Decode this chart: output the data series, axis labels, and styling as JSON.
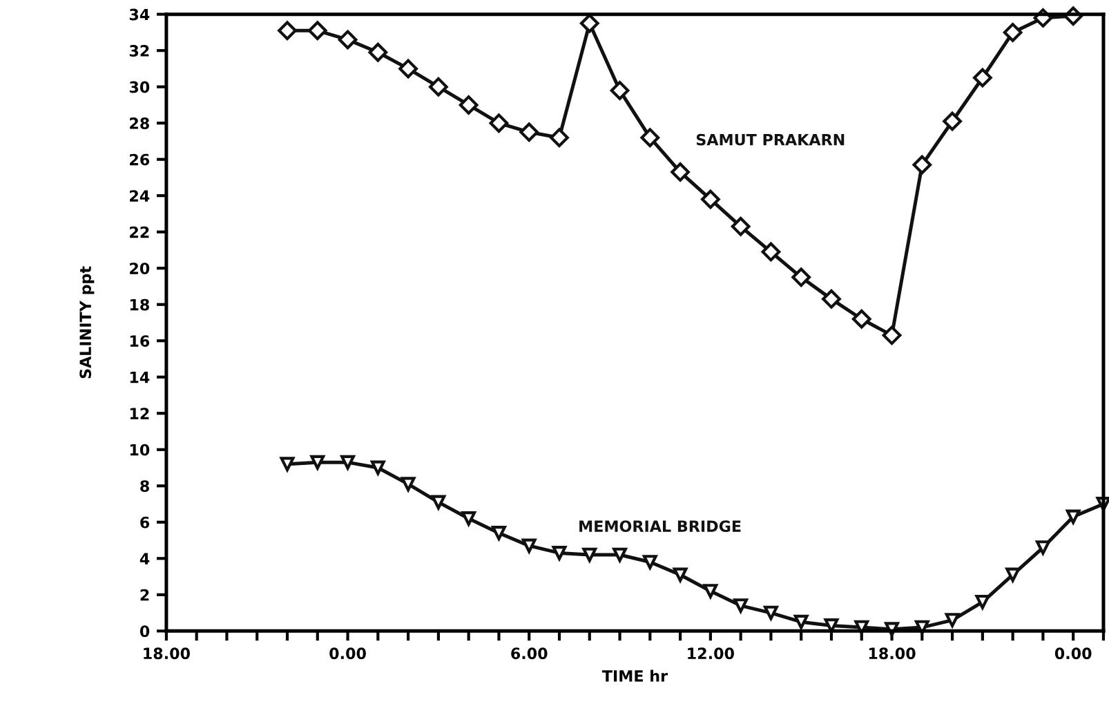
{
  "chart_data": {
    "type": "line",
    "xlabel": "TIME hr",
    "ylabel": "SALINITY ppt",
    "ylim": [
      0,
      34
    ],
    "categories": [
      "18.00",
      null,
      null,
      null,
      null,
      null,
      "0.00",
      null,
      null,
      null,
      null,
      null,
      "6.00",
      null,
      null,
      null,
      null,
      null,
      "12.00",
      null,
      null,
      null,
      null,
      null,
      "18.00",
      null,
      null,
      null,
      null,
      null,
      "0.00",
      null
    ],
    "yticks": [
      0,
      2,
      4,
      6,
      8,
      10,
      12,
      14,
      16,
      18,
      20,
      22,
      24,
      26,
      28,
      30,
      32,
      34
    ],
    "grid": false,
    "legend": false,
    "line_style": "solid",
    "series": [
      {
        "name": "SAMUT PRAKARN",
        "color": "#111111",
        "marker": "diamond",
        "values": [
          null,
          null,
          null,
          null,
          33.1,
          33.1,
          32.6,
          31.9,
          31.0,
          30.0,
          29.0,
          28.0,
          27.5,
          27.2,
          33.5,
          29.8,
          27.2,
          25.3,
          23.8,
          22.3,
          20.9,
          19.5,
          18.3,
          17.2,
          16.3,
          25.7,
          28.1,
          30.5,
          33.0,
          33.8,
          33.9,
          null
        ]
      },
      {
        "name": "MEMORIAL BRIDGE",
        "color": "#111111",
        "marker": "triangle",
        "values": [
          null,
          null,
          null,
          null,
          9.2,
          9.3,
          9.3,
          9.0,
          8.1,
          7.1,
          6.2,
          5.4,
          4.7,
          4.3,
          4.2,
          4.2,
          3.8,
          3.1,
          2.2,
          1.4,
          1.0,
          0.5,
          0.3,
          0.2,
          0.1,
          0.2,
          0.6,
          1.6,
          3.1,
          4.6,
          6.3,
          7.0
        ]
      }
    ]
  }
}
